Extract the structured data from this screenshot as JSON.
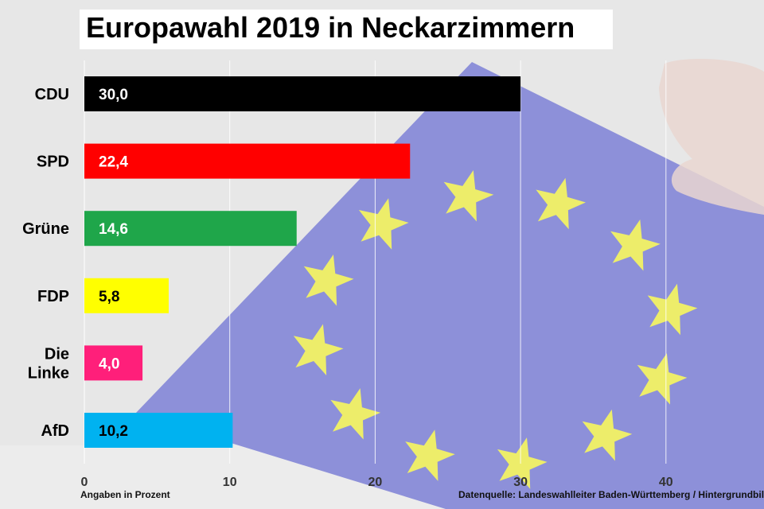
{
  "chart_data": {
    "type": "bar",
    "orientation": "horizontal",
    "title": "Europawahl 2019 in Neckarzimmern",
    "categories": [
      "CDU",
      "SPD",
      "Grüne",
      "FDP",
      "Die Linke",
      "AfD"
    ],
    "values": [
      30.0,
      22.4,
      14.6,
      5.8,
      4.0,
      10.2
    ],
    "value_labels": [
      "30,0",
      "22,4",
      "14,6",
      "5,8",
      "4,0",
      "10,2"
    ],
    "colors": [
      "#000000",
      "#ff0000",
      "#1fa64a",
      "#ffff00",
      "#ff1f7a",
      "#00b2f0"
    ],
    "value_label_colors": [
      "#ffffff",
      "#ffffff",
      "#ffffff",
      "#000000",
      "#ffffff",
      "#000000"
    ],
    "xlim": [
      0,
      46
    ],
    "xticks": [
      "0",
      "10",
      "20",
      "30",
      "40"
    ],
    "grid": true,
    "xlabel": "Angaben in Prozent",
    "source": "Datenquelle: Landeswahlleiter Baden-Württemberg  / Hintergrundbild"
  }
}
